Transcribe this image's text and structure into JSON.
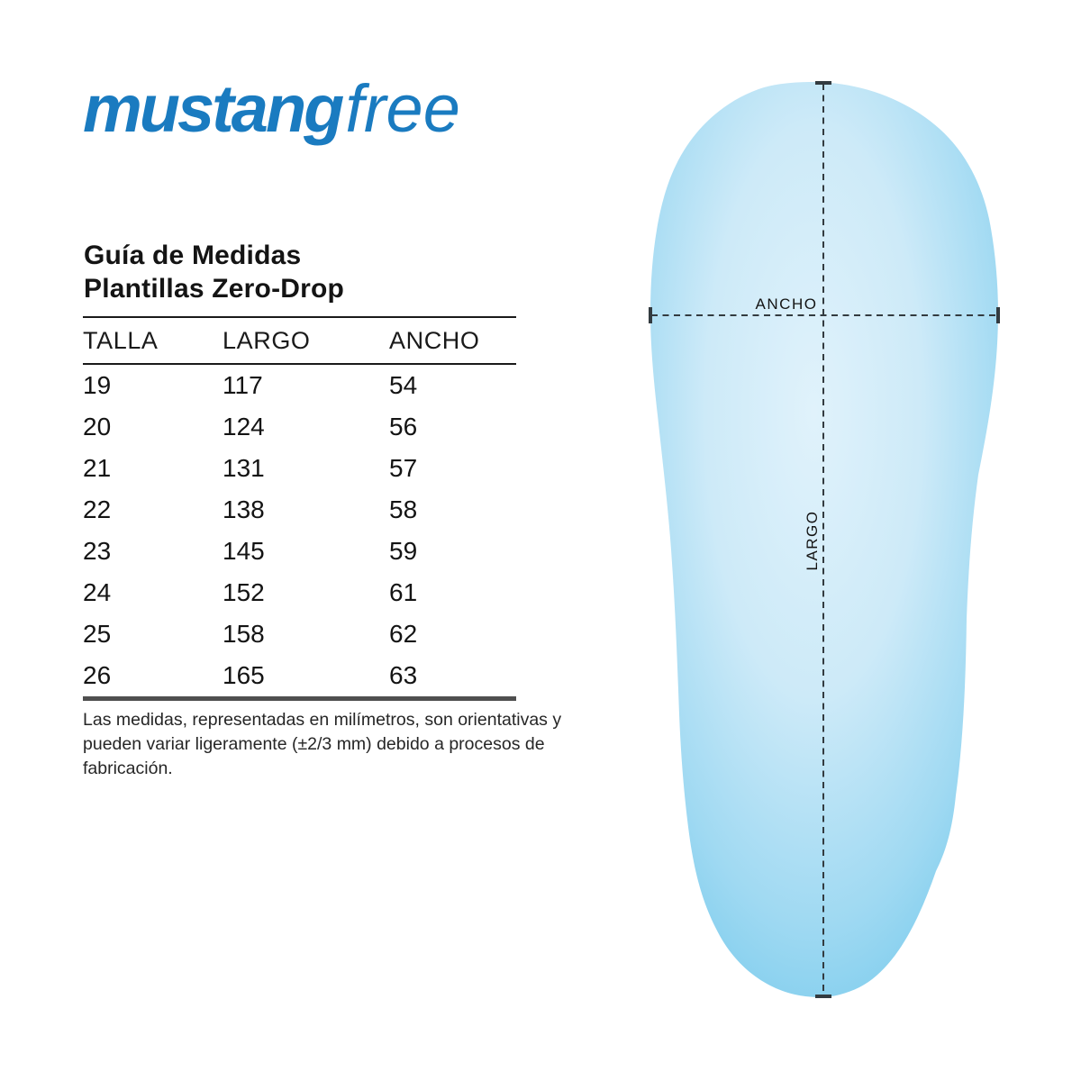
{
  "logo": {
    "bold": "mustang",
    "light": "free"
  },
  "heading": {
    "line1": "Guía de Medidas",
    "line2": "Plantillas Zero-Drop"
  },
  "table": {
    "headers": [
      "TALLA",
      "LARGO",
      "ANCHO"
    ],
    "rows": [
      [
        "19",
        "117",
        "54"
      ],
      [
        "20",
        "124",
        "56"
      ],
      [
        "21",
        "131",
        "57"
      ],
      [
        "22",
        "138",
        "58"
      ],
      [
        "23",
        "145",
        "59"
      ],
      [
        "24",
        "152",
        "61"
      ],
      [
        "25",
        "158",
        "62"
      ],
      [
        "26",
        "165",
        "63"
      ]
    ]
  },
  "footnote": {
    "line1": "Las medidas, representadas en milímetros, son orientativas y",
    "line2": "pueden variar ligeramente (±2/3 mm) debido a procesos de fabricación."
  },
  "diagram": {
    "width_label": "ANCHO",
    "length_label": "LARGO"
  },
  "chart_data": {
    "type": "table",
    "title": "Guía de Medidas Plantillas Zero-Drop",
    "columns": [
      "TALLA",
      "LARGO",
      "ANCHO"
    ],
    "unit": "mm",
    "rows": [
      [
        19,
        117,
        54
      ],
      [
        20,
        124,
        56
      ],
      [
        21,
        131,
        57
      ],
      [
        22,
        138,
        58
      ],
      [
        23,
        145,
        59
      ],
      [
        24,
        152,
        61
      ],
      [
        25,
        158,
        62
      ],
      [
        26,
        165,
        63
      ]
    ]
  },
  "colors": {
    "brand_blue": "#1a7bc0",
    "insole_center": "#e0f2fb",
    "insole_mid1": "#cdeaf8",
    "insole_mid2": "#9fd9f2",
    "insole_edge_soft": "#7fcded",
    "insole_edge": "#69c4e9",
    "dimension_line": "#333b40",
    "thick_rule": "#4f4f4f"
  }
}
